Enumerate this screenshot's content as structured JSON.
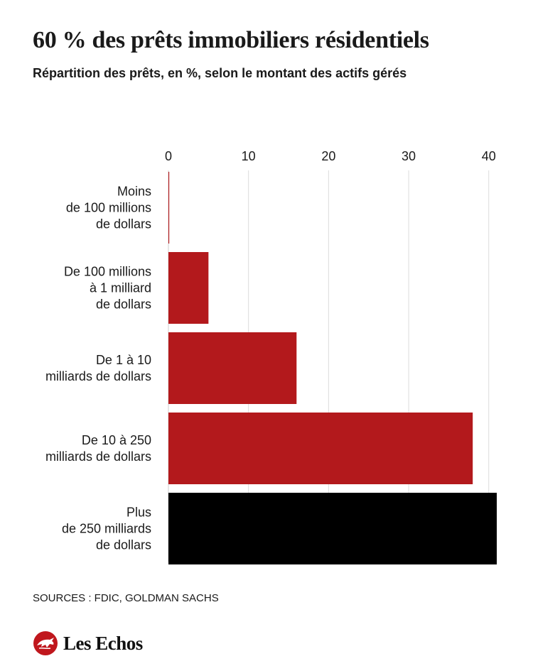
{
  "header": {
    "title": "60 % des prêts immobiliers résidentiels",
    "subtitle": "Répartition des prêts, en %, selon le montant des actifs gérés"
  },
  "chart_data": {
    "type": "bar",
    "orientation": "horizontal",
    "title": "60 % des prêts immobiliers résidentiels",
    "subtitle": "Répartition des prêts, en %, selon le montant des actifs gérés",
    "categories": [
      [
        "Moins",
        "de 100 millions",
        "de dollars"
      ],
      [
        "De 100 millions",
        "à 1 milliard",
        "de dollars"
      ],
      [
        "De 1 à 10",
        "milliards de dollars"
      ],
      [
        "De 10 à 250",
        "milliards de dollars"
      ],
      [
        "Plus",
        "de 250 milliards",
        "de dollars"
      ]
    ],
    "values": [
      0.1,
      5,
      16,
      38,
      41
    ],
    "bar_colors": [
      "#b3191c",
      "#b3191c",
      "#b3191c",
      "#b3191c",
      "#000000"
    ],
    "xticks": [
      "0",
      "10",
      "20",
      "30",
      "40"
    ],
    "xlim": [
      0,
      41
    ],
    "xaxis_position": "top",
    "grid": true,
    "grid_color": "#dcdcdc"
  },
  "footer": {
    "source": "SOURCES : FDIC, GOLDMAN SACHS",
    "brand": "Les Echos",
    "brand_color": "#c0171d"
  }
}
